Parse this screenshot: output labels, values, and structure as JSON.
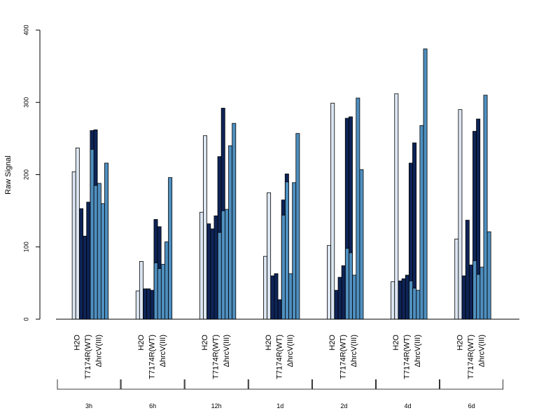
{
  "chart_data": {
    "type": "bar",
    "ylabel": "Raw Signal",
    "ylim": [
      0,
      400
    ],
    "yticks": [
      "0",
      "100",
      "200",
      "300",
      "400"
    ],
    "grid": false,
    "legend": "none",
    "time_points": [
      "3h",
      "6h",
      "12h",
      "1d",
      "2d",
      "4d",
      "6d"
    ],
    "groups": [
      {
        "label": "H2O",
        "color": "#DCE6F2"
      },
      {
        "label": "T7174R(WT)",
        "color": "#0E2457"
      },
      {
        "label": "ΔhrcV(III)",
        "color": "#4F8FBF"
      }
    ],
    "data": [
      {
        "time": "3h",
        "H2O": [
          0,
          204,
          237
        ],
        "T7174R(WT)": [
          153,
          115,
          162,
          261,
          262
        ],
        "ΔhrcV(III)": [
          235,
          185,
          188,
          160,
          216
        ]
      },
      {
        "time": "6h",
        "H2O": [
          0,
          39,
          80
        ],
        "T7174R(WT)": [
          42,
          42,
          40,
          138,
          128
        ],
        "ΔhrcV(III)": [
          78,
          70,
          76,
          107,
          196
        ]
      },
      {
        "time": "12h",
        "H2O": [
          0,
          148,
          254
        ],
        "T7174R(WT)": [
          132,
          125,
          143,
          225,
          292
        ],
        "ΔhrcV(III)": [
          120,
          150,
          152,
          240,
          271
        ]
      },
      {
        "time": "1d",
        "H2O": [
          0,
          87,
          175
        ],
        "T7174R(WT)": [
          60,
          63,
          27,
          165,
          201
        ],
        "ΔhrcV(III)": [
          144,
          190,
          63,
          189,
          257
        ]
      },
      {
        "time": "2d",
        "H2O": [
          0,
          102,
          299
        ],
        "T7174R(WT)": [
          40,
          58,
          74,
          278,
          280
        ],
        "ΔhrcV(III)": [
          98,
          92,
          61,
          306,
          207
        ]
      },
      {
        "time": "4d",
        "H2O": [
          0,
          52,
          312
        ],
        "T7174R(WT)": [
          53,
          56,
          61,
          216,
          244
        ],
        "ΔhrcV(III)": [
          53,
          43,
          40,
          268,
          374
        ]
      },
      {
        "time": "6d",
        "H2O": [
          0,
          111,
          290
        ],
        "T7174R(WT)": [
          60,
          137,
          75,
          260,
          277
        ],
        "ΔhrcV(III)": [
          81,
          62,
          72,
          310,
          121
        ]
      }
    ]
  }
}
